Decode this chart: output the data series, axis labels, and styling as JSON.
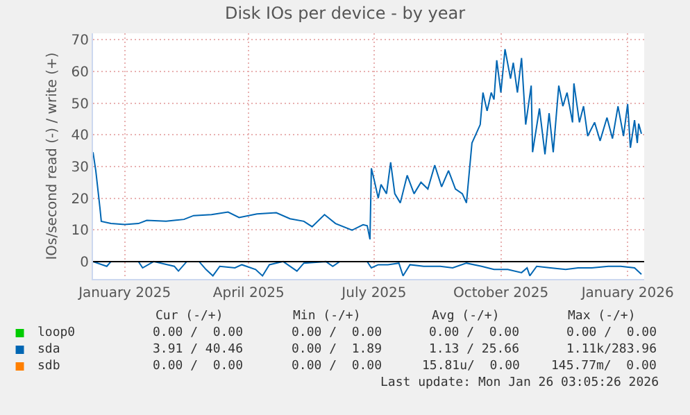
{
  "chart_data": {
    "type": "line",
    "title": "Disk IOs per device - by year",
    "ylabel": "IOs/second read (-) / write (+)",
    "xlim": [
      "2024-12-23",
      "2026-01-27"
    ],
    "xticks": [
      {
        "value": "2025-01-15",
        "label": "January 2025"
      },
      {
        "value": "2025-04-15",
        "label": "April 2025"
      },
      {
        "value": "2025-07-15",
        "label": "July 2025"
      },
      {
        "value": "2025-10-15",
        "label": "October 2025"
      },
      {
        "value": "2026-01-15",
        "label": "January 2026"
      }
    ],
    "ylim": [
      -5.5,
      72
    ],
    "yticks": [
      0,
      10,
      20,
      30,
      40,
      50,
      60,
      70
    ],
    "grid": true,
    "legend": "bottom",
    "ref_lines": [
      {
        "axis": "y",
        "value": 0,
        "color": "#000000"
      }
    ],
    "series": [
      {
        "name": "loop0",
        "color": "#00cc00"
      },
      {
        "name": "sda",
        "color": "#0066b3",
        "x": [
          "2024-12-23",
          "2024-12-25",
          "2024-12-28",
          "2024-12-29",
          "2025-01-05",
          "2025-01-15",
          "2025-01-25",
          "2025-01-31",
          "2025-02-14",
          "2025-02-27",
          "2025-03-06",
          "2025-03-19",
          "2025-03-31",
          "2025-04-08",
          "2025-04-21",
          "2025-05-05",
          "2025-05-15",
          "2025-05-25",
          "2025-05-31",
          "2025-06-09",
          "2025-06-17",
          "2025-06-29",
          "2025-07-07",
          "2025-07-10",
          "2025-07-12",
          "2025-07-13",
          "2025-07-15",
          "2025-07-18",
          "2025-07-20",
          "2025-07-24",
          "2025-07-27",
          "2025-07-30",
          "2025-08-03",
          "2025-08-08",
          "2025-08-13",
          "2025-08-18",
          "2025-08-23",
          "2025-08-28",
          "2025-09-02",
          "2025-09-07",
          "2025-09-12",
          "2025-09-17",
          "2025-09-20",
          "2025-09-24",
          "2025-09-27",
          "2025-09-30",
          "2025-10-02",
          "2025-10-05",
          "2025-10-08",
          "2025-10-10",
          "2025-10-12",
          "2025-10-15",
          "2025-10-18",
          "2025-10-22",
          "2025-10-24",
          "2025-10-27",
          "2025-10-30",
          "2025-11-02",
          "2025-11-06",
          "2025-11-07",
          "2025-11-12",
          "2025-11-16",
          "2025-11-19",
          "2025-11-22",
          "2025-11-26",
          "2025-11-29",
          "2025-12-02",
          "2025-12-06",
          "2025-12-07",
          "2025-12-11",
          "2025-12-14",
          "2025-12-17",
          "2025-12-22",
          "2025-12-26",
          "2025-12-31",
          "2026-01-04",
          "2026-01-08",
          "2026-01-12",
          "2026-01-15",
          "2026-01-17",
          "2026-01-20",
          "2026-01-22",
          "2026-01-23",
          "2026-01-25"
        ],
        "values": [
          34.5,
          28.7,
          17,
          12.7,
          12,
          11.7,
          12,
          13,
          12.7,
          13.3,
          14.5,
          14.8,
          15.6,
          13.9,
          15,
          15.4,
          13.5,
          12.7,
          11,
          14.8,
          12,
          9.9,
          11.6,
          11.3,
          7,
          29.4,
          25.8,
          20,
          24.3,
          21.4,
          31.3,
          21.4,
          18.5,
          27.2,
          21.4,
          25,
          22.9,
          30.4,
          23.6,
          28.7,
          22.9,
          21.4,
          18.5,
          37.4,
          40.3,
          43.2,
          53.3,
          47.5,
          53.3,
          51.1,
          63.5,
          53.3,
          67,
          57.7,
          62.7,
          53.3,
          64.2,
          43.2,
          55.5,
          34.5,
          48.3,
          33.8,
          46.8,
          34.5,
          55.5,
          49,
          53.3,
          43.9,
          56.2,
          43.9,
          49,
          39.6,
          43.9,
          38.1,
          45.4,
          38.8,
          49,
          39.6,
          49.7,
          35.9,
          44.6,
          37.4,
          43.5,
          40.3
        ]
      },
      {
        "color": "#0066b3",
        "x": [
          "2024-12-23",
          "2025-01-02",
          "2025-01-05",
          "2025-01-25",
          "2025-01-28",
          "2025-02-05",
          "2025-02-20",
          "2025-02-23",
          "2025-03-01",
          "2025-03-10",
          "2025-03-15",
          "2025-03-20",
          "2025-03-25",
          "2025-04-05",
          "2025-04-10",
          "2025-04-20",
          "2025-04-25",
          "2025-04-30",
          "2025-05-10",
          "2025-05-20",
          "2025-05-25",
          "2025-06-10",
          "2025-06-15",
          "2025-06-20",
          "2025-07-05",
          "2025-07-10",
          "2025-07-13",
          "2025-07-18",
          "2025-07-25",
          "2025-08-02",
          "2025-08-05",
          "2025-08-10",
          "2025-08-20",
          "2025-09-01",
          "2025-09-10",
          "2025-09-20",
          "2025-10-01",
          "2025-10-10",
          "2025-10-20",
          "2025-10-30",
          "2025-11-03",
          "2025-11-05",
          "2025-11-10",
          "2025-11-20",
          "2025-12-01",
          "2025-12-10",
          "2025-12-20",
          "2026-01-01",
          "2026-01-10",
          "2026-01-20",
          "2026-01-25"
        ],
        "values": [
          0,
          -1.5,
          0,
          0,
          -2,
          0,
          -1.5,
          -3,
          0,
          0,
          -2.5,
          -4.5,
          -1.5,
          -2,
          -1,
          -2.5,
          -4.5,
          -1,
          0,
          -3,
          -0.5,
          0,
          -1.5,
          0,
          0,
          0,
          -2,
          -1,
          -1,
          -0.5,
          -4.5,
          -1,
          -1.5,
          -1.5,
          -2,
          -0.5,
          -1.5,
          -2.5,
          -2.5,
          -3.5,
          -2,
          -4.5,
          -1.5,
          -2,
          -2.5,
          -2,
          -2,
          -1.5,
          -1.5,
          -2,
          -4
        ]
      },
      {
        "name": "sdb",
        "color": "#ff7f00"
      }
    ],
    "annotations": [
      "Cur (-/+)",
      "Min (-/+)",
      "Avg (-/+)",
      "Max (-/+)",
      "0.00 /  0.00",
      "0.00 /  0.00",
      "0.00 /  0.00",
      "0.00 /  0.00",
      "3.91 / 40.46",
      "0.00 /  1.89",
      "1.13 / 25.66",
      "1.11k/283.96",
      "0.00 /  0.00",
      "0.00 /  0.00",
      "15.81u/  0.00",
      "145.77m/  0.00",
      "Last update: Mon Jan 26 03:05:26 2026"
    ]
  }
}
